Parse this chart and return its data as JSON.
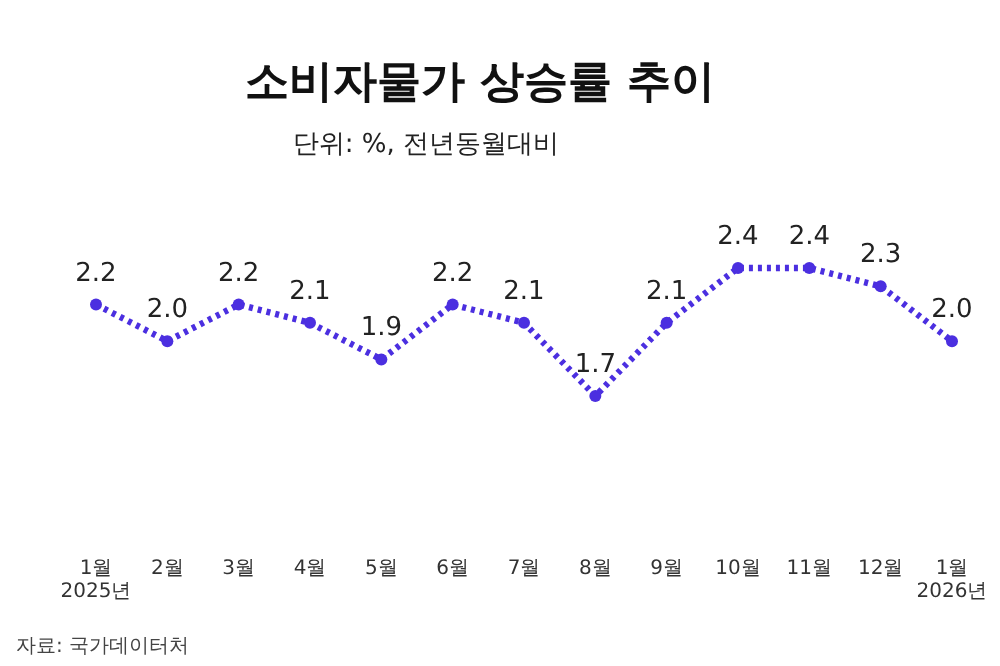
{
  "chart_data": {
    "type": "line",
    "title": "소비자물가 상승률 추이",
    "subtitle": "단위: %, 전년동월대비",
    "categories": [
      "1월\n2025년",
      "2월",
      "3월",
      "4월",
      "5월",
      "6월",
      "7월",
      "8월",
      "9월",
      "10월",
      "11월",
      "12월",
      "1월\n2026년"
    ],
    "series": [
      {
        "color": "#4b2fe0",
        "values": [
          2.2,
          2.0,
          2.2,
          2.1,
          1.9,
          2.2,
          2.1,
          1.7,
          2.1,
          2.4,
          2.4,
          2.3,
          2.0
        ],
        "value_labels": [
          "2.2",
          "2.0",
          "2.2",
          "2.1",
          "1.9",
          "2.2",
          "2.1",
          "1.7",
          "2.1",
          "2.4",
          "2.4",
          "2.3",
          "2.0"
        ]
      }
    ],
    "marker": "circle",
    "line_style": "dotted",
    "annotations": [
      "자료: 국가데이터처"
    ]
  }
}
